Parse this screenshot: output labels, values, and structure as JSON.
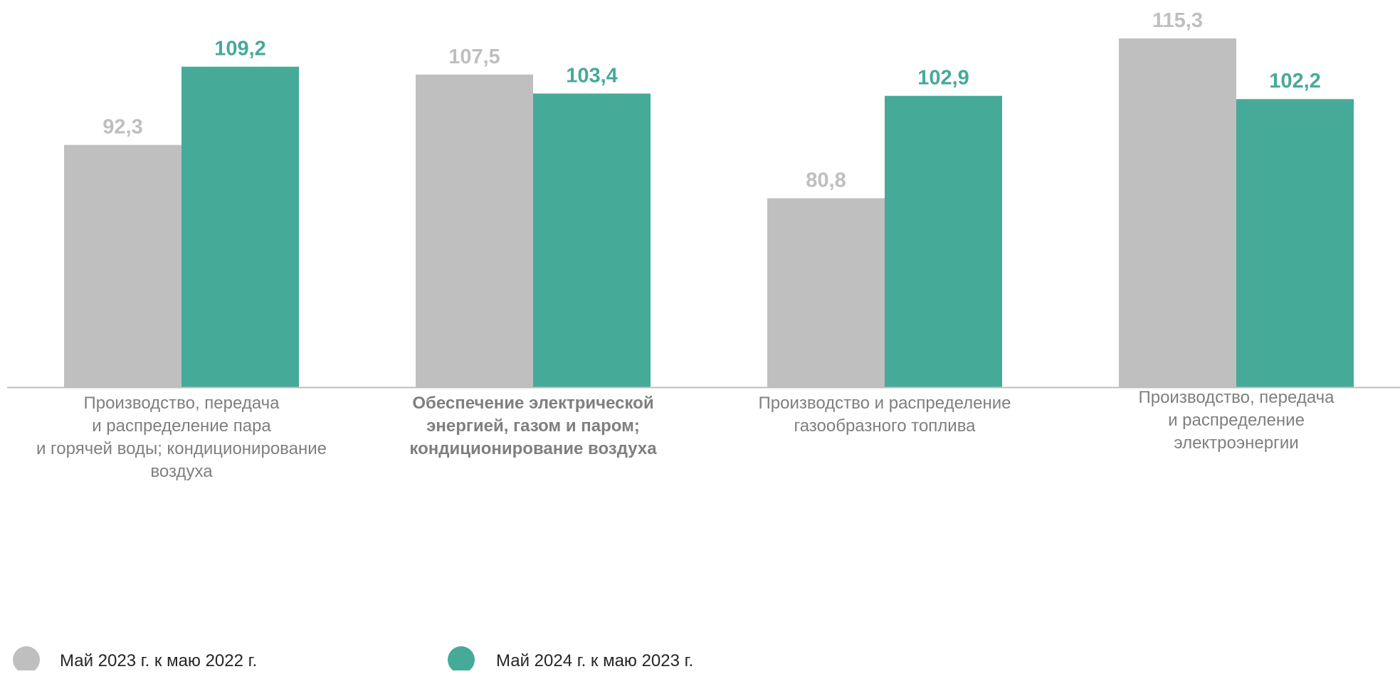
{
  "chart_data": {
    "type": "bar",
    "categories": [
      [
        "Производство, передача",
        "и распределение пара",
        "и горячей воды; кондиционирование",
        "воздуха"
      ],
      [
        "Обеспечение электрической",
        "энергией, газом и паром;",
        "кондиционирование воздуха"
      ],
      [
        "Производство и распределение",
        "газообразного топлива"
      ],
      [
        "Производство, передача",
        "и распределение",
        "электроэнергии"
      ]
    ],
    "bold_categories": [
      false,
      true,
      false,
      false
    ],
    "series": [
      {
        "name": "Май 2023 г. к маю 2022 г.",
        "values": [
          92.3,
          107.5,
          80.8,
          115.3
        ],
        "value_labels": [
          "92,3",
          "107,5",
          "80,8",
          "115,3"
        ],
        "color": "#bfbfbf"
      },
      {
        "name": "Май 2024 г. к  маю 2023 г.",
        "values": [
          109.2,
          103.4,
          102.9,
          102.2
        ],
        "value_labels": [
          "109,2",
          "103,4",
          "102,9",
          "102,2"
        ],
        "color": "#46aa98"
      }
    ],
    "ylim": [
      40,
      120
    ],
    "title": "",
    "xlabel": "",
    "ylabel": "",
    "grid": false,
    "legend_position": "bottom-left"
  }
}
